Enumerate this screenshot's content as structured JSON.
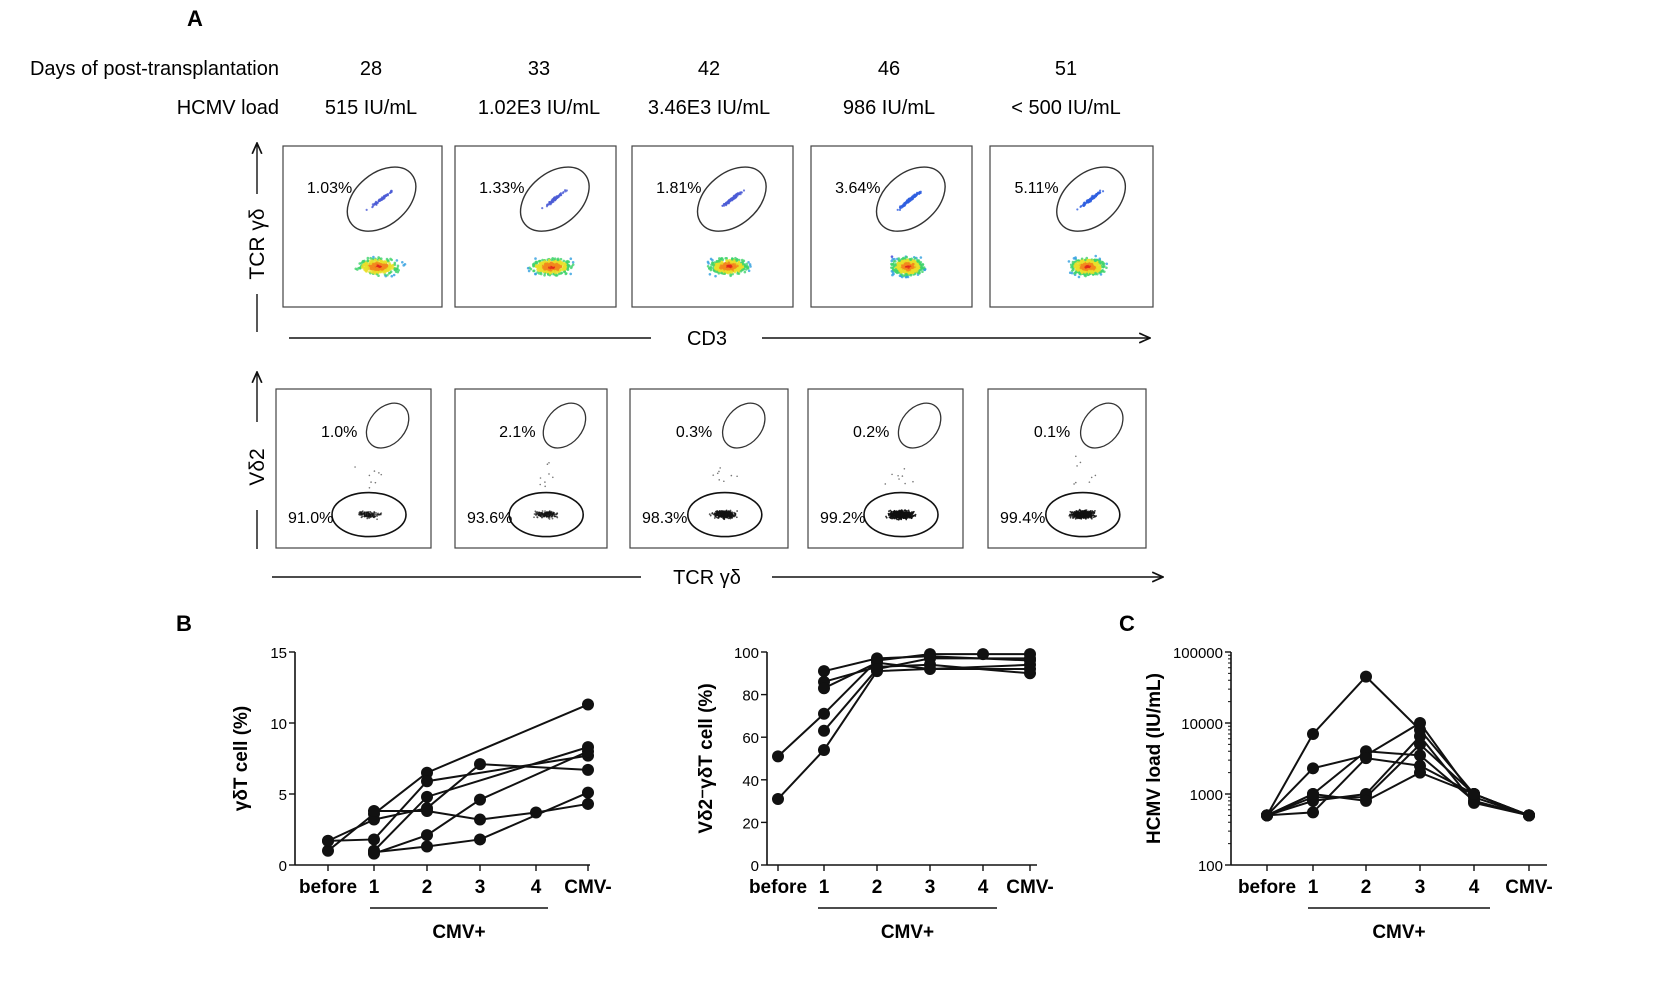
{
  "panel_labels": {
    "a": "A",
    "b": "B",
    "c": "C"
  },
  "header": {
    "days_label": "Days of post-transplantation",
    "load_label": "HCMV load"
  },
  "columns": [
    {
      "day": "28",
      "load": "515 IU/mL",
      "tcr_pct": "1.03%",
      "vd2_pos": "1.0%",
      "vd2_neg": "91.0%",
      "tcr_density": 0.35,
      "vd2_density": 0.15
    },
    {
      "day": "33",
      "load": "1.02E3 IU/mL",
      "tcr_pct": "1.33%",
      "vd2_pos": "2.1%",
      "vd2_neg": "93.6%",
      "tcr_density": 0.45,
      "vd2_density": 0.2
    },
    {
      "day": "42",
      "load": "3.46E3 IU/mL",
      "tcr_pct": "1.81%",
      "vd2_pos": "0.3%",
      "vd2_neg": "98.3%",
      "tcr_density": 0.6,
      "vd2_density": 0.55
    },
    {
      "day": "46",
      "load": "986 IU/mL",
      "tcr_pct": "3.64%",
      "vd2_pos": "0.2%",
      "vd2_neg": "99.2%",
      "tcr_density": 1.0,
      "vd2_density": 1.0
    },
    {
      "day": "51",
      "load": "< 500 IU/mL",
      "tcr_pct": "5.11%",
      "vd2_pos": "0.1%",
      "vd2_neg": "99.4%",
      "tcr_density": 0.8,
      "vd2_density": 0.75
    }
  ],
  "flow_axes": {
    "row1_y": "TCR γδ",
    "row1_x": "CD3",
    "row2_y": "Vδ2",
    "row2_x": "TCR γδ"
  },
  "colors": {
    "ink": "#111111",
    "dot": "#111111"
  },
  "chart_data": [
    {
      "type": "line",
      "title": "",
      "ylabel": "γδT cell (%)",
      "categories": [
        "before",
        "1",
        "2",
        "3",
        "4",
        "CMV-"
      ],
      "group_label": "CMV+",
      "yscale": "linear",
      "ylim": [
        0,
        15
      ],
      "yticks": [
        0,
        5,
        10,
        15
      ],
      "series": [
        {
          "name": "p1",
          "values": [
            1.0,
            3.6,
            6.5,
            null,
            null,
            11.3
          ]
        },
        {
          "name": "p2",
          "values": [
            1.7,
            1.8,
            5.9,
            null,
            null,
            7.7
          ]
        },
        {
          "name": "p3",
          "values": [
            1.7,
            3.2,
            4.0,
            7.1,
            null,
            6.7
          ]
        },
        {
          "name": "p4",
          "values": [
            null,
            1.0,
            4.8,
            null,
            null,
            8.3
          ]
        },
        {
          "name": "p5",
          "values": [
            null,
            0.8,
            2.1,
            4.6,
            null,
            8.0
          ]
        },
        {
          "name": "p6",
          "values": [
            null,
            0.9,
            1.3,
            1.8,
            null,
            5.1
          ]
        },
        {
          "name": "p7",
          "values": [
            null,
            3.8,
            3.8,
            3.2,
            3.7,
            4.3
          ]
        }
      ]
    },
    {
      "type": "line",
      "title": "",
      "ylabel": "Vδ2⁻γδT cell (%)",
      "categories": [
        "before",
        "1",
        "2",
        "3",
        "4",
        "CMV-"
      ],
      "group_label": "CMV+",
      "yscale": "linear",
      "ylim": [
        0,
        100
      ],
      "yticks": [
        0,
        20,
        40,
        60,
        80,
        100
      ],
      "series": [
        {
          "name": "p1",
          "values": [
            31,
            54,
            91,
            null,
            null,
            94
          ]
        },
        {
          "name": "p2",
          "values": [
            51,
            71,
            96,
            99,
            99,
            99
          ]
        },
        {
          "name": "p3",
          "values": [
            null,
            91,
            97,
            98,
            null,
            96
          ]
        },
        {
          "name": "p4",
          "values": [
            null,
            86,
            93,
            94,
            null,
            90
          ]
        },
        {
          "name": "p5",
          "values": [
            null,
            83,
            95,
            92,
            null,
            92
          ]
        },
        {
          "name": "p6",
          "values": [
            null,
            63,
            92,
            97,
            null,
            97
          ]
        }
      ]
    },
    {
      "type": "line",
      "title": "",
      "ylabel": "HCMV load (IU/mL)",
      "categories": [
        "before",
        "1",
        "2",
        "3",
        "4",
        "CMV-"
      ],
      "group_label": "CMV+",
      "yscale": "log",
      "ylim": [
        100,
        100000
      ],
      "yticks": [
        100,
        1000,
        10000,
        100000
      ],
      "series": [
        {
          "name": "p1",
          "values": [
            500,
            7000,
            45000,
            8000,
            1000,
            500
          ]
        },
        {
          "name": "p2",
          "values": [
            500,
            2300,
            3500,
            10000,
            900,
            500
          ]
        },
        {
          "name": "p3",
          "values": [
            500,
            1000,
            4000,
            3500,
            800,
            500
          ]
        },
        {
          "name": "p4",
          "values": [
            500,
            900,
            900,
            5000,
            1000,
            500
          ]
        },
        {
          "name": "p5",
          "values": [
            500,
            800,
            1000,
            6500,
            750,
            500
          ]
        },
        {
          "name": "p6",
          "values": [
            500,
            550,
            3200,
            2500,
            1000,
            500
          ]
        },
        {
          "name": "p7",
          "values": [
            500,
            1000,
            800,
            2000,
            1000,
            500
          ]
        }
      ]
    }
  ]
}
